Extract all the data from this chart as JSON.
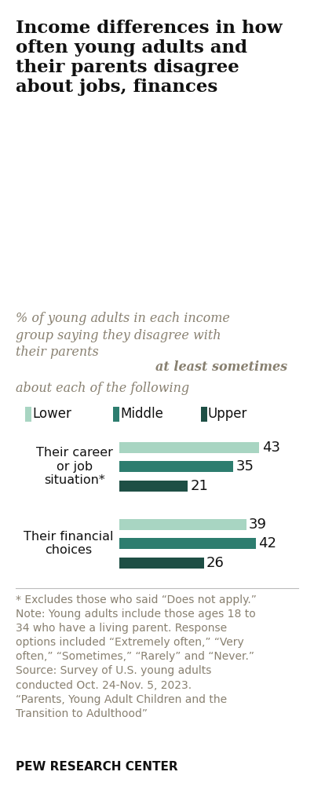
{
  "title": "Income differences in how\noften young adults and\ntheir parents disagree\nabout jobs, finances",
  "subtitle_line1": "% of young adults in each income",
  "subtitle_line2": "group saying they disagree with",
  "subtitle_line3_plain": "their parents ",
  "subtitle_bold": "at least sometimes",
  "subtitle_line4": "about each of the following",
  "legend_labels": [
    "Lower",
    "Middle",
    "Upper"
  ],
  "bar_colors": [
    "#a8d5c2",
    "#2d7d6f",
    "#1e4f45"
  ],
  "categories": [
    "Their career\nor job\nsituation*",
    "Their financial\nchoices"
  ],
  "values": [
    [
      43,
      35,
      21
    ],
    [
      39,
      42,
      26
    ]
  ],
  "footnote": "* Excludes those who said “Does not apply.”\nNote: Young adults include those ages 18 to\n34 who have a living parent. Response\noptions included “Extremely often,” “Very\noften,” “Sometimes,” “Rarely” and “Never.”\nSource: Survey of U.S. young adults\nconducted Oct. 24-Nov. 5, 2023.\n“Parents, Young Adult Children and the\nTransition to Adulthood”",
  "source_bold": "PEW RESEARCH CENTER",
  "xlim": [
    0,
    55
  ],
  "bar_height": 0.55,
  "background_color": "#ffffff",
  "title_color": "#111111",
  "subtitle_color": "#888070",
  "footnote_color": "#888070",
  "value_label_color": "#111111",
  "title_fontsize": 16.5,
  "subtitle_fontsize": 11.5,
  "legend_fontsize": 12,
  "bar_label_fontsize": 13,
  "cat_label_fontsize": 11.5,
  "footnote_fontsize": 10,
  "source_fontsize": 11
}
